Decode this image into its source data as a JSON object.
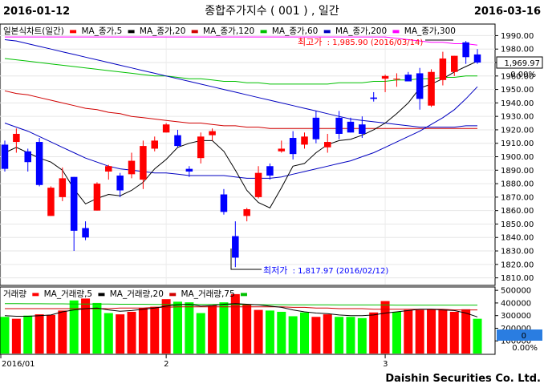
{
  "header": {
    "start_date": "2016-01-12",
    "title": "종합주가지수 ( 001 ) , 일간",
    "end_date": "2016-03-16"
  },
  "footer": {
    "brand": "Daishin Securities Co. Ltd."
  },
  "colors": {
    "up": "#ff0000",
    "down": "#0000ff",
    "vol_up": "#ff0000",
    "vol_down": "#00ff00",
    "ma5": "#000000",
    "ma20": "#0000c0",
    "ma120": "#d00000",
    "ma60": "#00c000",
    "ma300": "#ff00ff",
    "ma_vol5": "#000000",
    "ma_vol20": "#d00000",
    "ma_vol75": "#00c000"
  },
  "price_panel": {
    "legend": [
      {
        "text": "일본식차트(일간)",
        "color": "#000000"
      },
      {
        "text": "MA_종가,5",
        "color": "#000000"
      },
      {
        "text": "MA_종가,20",
        "color": "#0000c0"
      },
      {
        "text": "MA_종가,120",
        "color": "#d00000"
      },
      {
        "text": "MA_종가,60",
        "color": "#00c000"
      },
      {
        "text": "MA_종가,200",
        "color": "#0000c0"
      },
      {
        "text": "MA_종가,300",
        "color": "#ff00ff"
      }
    ],
    "high_label": "최고가",
    "high_value": ": 1,985.90 (2016/03/14)",
    "low_label": "최저가",
    "low_value": ": 1,817.97 (2016/02/12)",
    "last_price": "1,969.97",
    "change_pct": "0.00%"
  },
  "volume_panel": {
    "legend": [
      {
        "text": "거래량",
        "color": "#000000"
      },
      {
        "text": "MA_거래량,5",
        "color": "#000000"
      },
      {
        "text": "MA_거래량,20",
        "color": "#d00000"
      },
      {
        "text": "MA_거래량,75",
        "color": "#00c000"
      }
    ],
    "last_volume": "0",
    "change_pct": "0.00%"
  },
  "chart_data": [
    {
      "type": "candlestick",
      "title": "종합주가지수 ( 001 ) , 일간",
      "ylim": [
        1805,
        1998
      ],
      "y_ticks": [
        1810,
        1820,
        1830,
        1840,
        1850,
        1860,
        1870,
        1880,
        1890,
        1900,
        1910,
        1920,
        1930,
        1940,
        1950,
        1960,
        1970,
        1980,
        1990
      ],
      "x_ticks": [
        "2016/01",
        "2",
        "3"
      ],
      "candles": [
        {
          "o": 1909,
          "h": 1912,
          "l": 1889,
          "c": 1891
        },
        {
          "o": 1911,
          "h": 1921,
          "l": 1903,
          "c": 1917
        },
        {
          "o": 1904,
          "h": 1906,
          "l": 1889,
          "c": 1896
        },
        {
          "o": 1911,
          "h": 1914,
          "l": 1878,
          "c": 1879
        },
        {
          "o": 1856,
          "h": 1878,
          "l": 1856,
          "c": 1877
        },
        {
          "o": 1870,
          "h": 1892,
          "l": 1867,
          "c": 1884
        },
        {
          "o": 1885,
          "h": 1885,
          "l": 1830,
          "c": 1845
        },
        {
          "o": 1847,
          "h": 1852,
          "l": 1838,
          "c": 1840
        },
        {
          "o": 1860,
          "h": 1881,
          "l": 1860,
          "c": 1880
        },
        {
          "o": 1889,
          "h": 1894,
          "l": 1883,
          "c": 1893
        },
        {
          "o": 1886,
          "h": 1888,
          "l": 1870,
          "c": 1875
        },
        {
          "o": 1887,
          "h": 1903,
          "l": 1884,
          "c": 1897
        },
        {
          "o": 1883,
          "h": 1912,
          "l": 1876,
          "c": 1908
        },
        {
          "o": 1906,
          "h": 1915,
          "l": 1904,
          "c": 1912
        },
        {
          "o": 1918,
          "h": 1925,
          "l": 1918,
          "c": 1924
        },
        {
          "o": 1916,
          "h": 1920,
          "l": 1907,
          "c": 1908
        },
        {
          "o": 1891,
          "h": 1893,
          "l": 1885,
          "c": 1889
        },
        {
          "o": 1899,
          "h": 1918,
          "l": 1895,
          "c": 1915
        },
        {
          "o": 1916,
          "h": 1921,
          "l": 1912,
          "c": 1919
        },
        {
          "o": 1872,
          "h": 1876,
          "l": 1857,
          "c": 1859
        },
        {
          "o": 1841,
          "h": 1852,
          "l": 1818,
          "c": 1825
        },
        {
          "o": 1856,
          "h": 1862,
          "l": 1852,
          "c": 1861
        },
        {
          "o": 1870,
          "h": 1893,
          "l": 1869,
          "c": 1888
        },
        {
          "o": 1893,
          "h": 1895,
          "l": 1883,
          "c": 1886
        },
        {
          "o": 1904,
          "h": 1912,
          "l": 1903,
          "c": 1906
        },
        {
          "o": 1914,
          "h": 1919,
          "l": 1898,
          "c": 1902
        },
        {
          "o": 1909,
          "h": 1918,
          "l": 1906,
          "c": 1915
        },
        {
          "o": 1929,
          "h": 1934,
          "l": 1910,
          "c": 1913
        },
        {
          "o": 1907,
          "h": 1917,
          "l": 1903,
          "c": 1911
        },
        {
          "o": 1929,
          "h": 1934,
          "l": 1913,
          "c": 1917
        },
        {
          "o": 1926,
          "h": 1929,
          "l": 1918,
          "c": 1918
        },
        {
          "o": 1924,
          "h": 1930,
          "l": 1914,
          "c": 1917
        },
        {
          "o": 1944,
          "h": 1948,
          "l": 1941,
          "c": 1943
        },
        {
          "o": 1958,
          "h": 1961,
          "l": 1948,
          "c": 1960
        },
        {
          "o": 1958,
          "h": 1962,
          "l": 1952,
          "c": 1958
        },
        {
          "o": 1961,
          "h": 1963,
          "l": 1957,
          "c": 1956
        },
        {
          "o": 1962,
          "h": 1966,
          "l": 1935,
          "c": 1943
        },
        {
          "o": 1938,
          "h": 1965,
          "l": 1937,
          "c": 1963
        },
        {
          "o": 1957,
          "h": 1978,
          "l": 1953,
          "c": 1973
        },
        {
          "o": 1963,
          "h": 1975,
          "l": 1960,
          "c": 1975
        },
        {
          "o": 1985,
          "h": 1986,
          "l": 1969,
          "c": 1974
        },
        {
          "o": 1976,
          "h": 1980,
          "l": 1969,
          "c": 1970
        }
      ],
      "moving_averages": {
        "ma5": [
          1903,
          1907,
          1903,
          1899,
          1896,
          1890,
          1876,
          1865,
          1869,
          1872,
          1871,
          1875,
          1881,
          1891,
          1898,
          1907,
          1910,
          1912,
          1912,
          1904,
          1890,
          1875,
          1866,
          1862,
          1877,
          1893,
          1895,
          1903,
          1909,
          1912,
          1913,
          1916,
          1920,
          1925,
          1932,
          1940,
          1951,
          1954,
          1958,
          1963,
          1967,
          1971
        ],
        "ma20": [
          1925,
          1922,
          1919,
          1915,
          1911,
          1907,
          1903,
          1899,
          1896,
          1893,
          1891,
          1890,
          1889,
          1888,
          1888,
          1887,
          1886,
          1886,
          1886,
          1886,
          1885,
          1884,
          1884,
          1884,
          1885,
          1887,
          1889,
          1891,
          1893,
          1895,
          1897,
          1900,
          1903,
          1907,
          1911,
          1915,
          1919,
          1924,
          1929,
          1935,
          1943,
          1952
        ],
        "ma60": [
          1973,
          1972,
          1971,
          1970,
          1969,
          1968,
          1967,
          1966,
          1965,
          1964,
          1963,
          1962,
          1961,
          1960,
          1960,
          1959,
          1958,
          1958,
          1957,
          1956,
          1956,
          1955,
          1955,
          1954,
          1954,
          1954,
          1954,
          1954,
          1954,
          1955,
          1955,
          1955,
          1956,
          1956,
          1957,
          1957,
          1958,
          1958,
          1959,
          1959,
          1960,
          1960
        ],
        "ma120": [
          1949,
          1947,
          1946,
          1944,
          1942,
          1940,
          1938,
          1936,
          1935,
          1933,
          1932,
          1930,
          1929,
          1928,
          1927,
          1926,
          1925,
          1925,
          1924,
          1923,
          1923,
          1922,
          1922,
          1921,
          1921,
          1921,
          1921,
          1921,
          1921,
          1921,
          1921,
          1921,
          1921,
          1921,
          1921,
          1921,
          1921,
          1921,
          1921,
          1921,
          1921,
          1921
        ],
        "ma200": [
          1987,
          1986,
          1984,
          1982,
          1980,
          1978,
          1976,
          1974,
          1972,
          1970,
          1968,
          1966,
          1964,
          1962,
          1960,
          1958,
          1956,
          1954,
          1952,
          1950,
          1948,
          1946,
          1944,
          1942,
          1940,
          1938,
          1936,
          1934,
          1932,
          1930,
          1928,
          1927,
          1926,
          1925,
          1924,
          1923,
          1922,
          1922,
          1922,
          1922,
          1923,
          1923
        ],
        "ma300": [
          1989,
          1989,
          1989,
          1989,
          1989,
          1989,
          1989,
          1989,
          1989,
          1989,
          1989,
          1989,
          1989,
          1989,
          1989,
          1989,
          1989,
          1989,
          1989,
          1989,
          1989,
          1989,
          1989,
          1989,
          1989,
          1989,
          1989,
          1989,
          1989,
          1989,
          1989,
          1989,
          1989,
          1989,
          1988,
          1987,
          1986,
          1985,
          1985,
          1984,
          1984,
          1983
        ]
      }
    },
    {
      "type": "bar",
      "title": "거래량",
      "ylim": [
        0,
        520000
      ],
      "y_ticks": [
        100000,
        200000,
        300000,
        400000,
        500000
      ],
      "values": [
        290000,
        275000,
        300000,
        310000,
        305000,
        340000,
        420000,
        435000,
        400000,
        320000,
        310000,
        330000,
        360000,
        370000,
        430000,
        410000,
        405000,
        320000,
        380000,
        405000,
        470000,
        385000,
        345000,
        340000,
        330000,
        295000,
        325000,
        290000,
        310000,
        290000,
        290000,
        280000,
        325000,
        415000,
        330000,
        345000,
        345000,
        350000,
        345000,
        330000,
        350000,
        275000
      ],
      "up": [
        false,
        true,
        false,
        true,
        true,
        true,
        false,
        true,
        false,
        false,
        true,
        true,
        true,
        true,
        true,
        false,
        false,
        false,
        true,
        false,
        true,
        true,
        true,
        false,
        false,
        false,
        false,
        true,
        true,
        false,
        false,
        false,
        true,
        true,
        false,
        true,
        true,
        true,
        true,
        true,
        true,
        false
      ],
      "ma_vol5": [
        300000,
        295000,
        295000,
        300000,
        305000,
        330000,
        345000,
        355000,
        360000,
        345000,
        335000,
        340000,
        350000,
        360000,
        375000,
        385000,
        390000,
        375000,
        380000,
        390000,
        395000,
        390000,
        385000,
        375000,
        365000,
        345000,
        330000,
        320000,
        315000,
        305000,
        300000,
        300000,
        305000,
        320000,
        330000,
        340000,
        350000,
        350000,
        345000,
        340000,
        320000,
        290000
      ],
      "ma_vol20": [
        355000,
        355000,
        355000,
        355000,
        355000,
        355000,
        355000,
        355000,
        355000,
        355000,
        360000,
        360000,
        360000,
        365000,
        365000,
        370000,
        370000,
        370000,
        370000,
        370000,
        370000,
        370000,
        370000,
        370000,
        370000,
        365000,
        365000,
        360000,
        360000,
        355000,
        355000,
        355000,
        350000,
        350000,
        350000,
        350000,
        350000,
        350000,
        350000,
        345000,
        345000,
        345000
      ],
      "ma_vol75": [
        395000,
        395000,
        394000,
        394000,
        393000,
        393000,
        392000,
        392000,
        391000,
        391000,
        390000,
        390000,
        390000,
        389000,
        389000,
        389000,
        388000,
        388000,
        388000,
        387000,
        387000,
        387000,
        386000,
        386000,
        386000,
        385000,
        385000,
        385000,
        385000,
        384000,
        384000,
        384000,
        384000,
        384000,
        383000,
        383000,
        383000,
        383000,
        383000,
        383000,
        383000,
        383000
      ]
    }
  ]
}
